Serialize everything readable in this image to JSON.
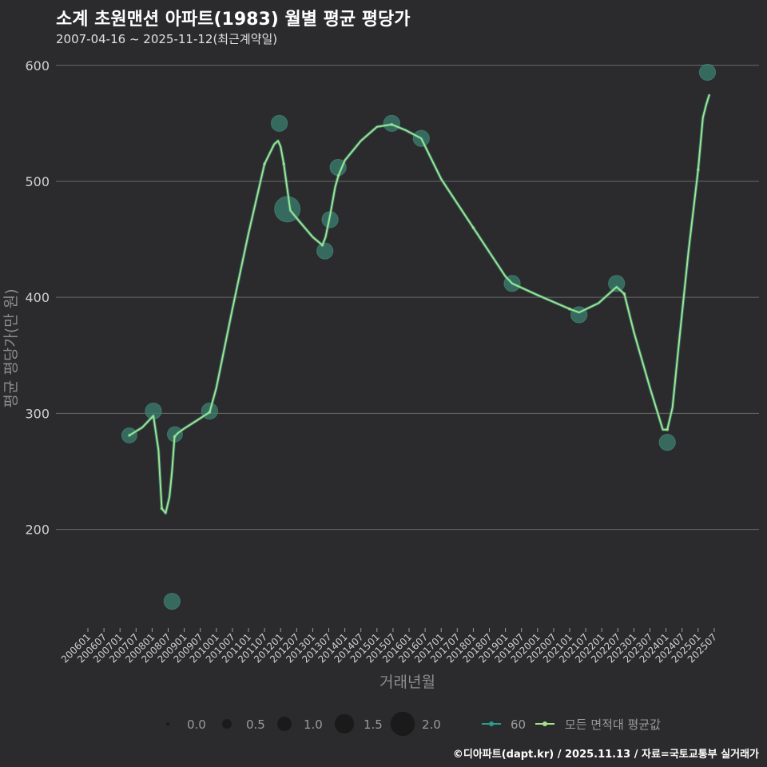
{
  "header": {
    "title": "소계 초원맨션 아파트(1983) 월별 평균 평당가",
    "subtitle": "2007-04-16 ~ 2025-11-12(최근계약일)"
  },
  "caption": "©디아파트(dapt.kr) / 2025.11.13 / 자료=국토교통부 실거래가",
  "colors": {
    "background": "#2b2b2d",
    "grid": "#6a6a6a",
    "series60": "#2a9d8f",
    "avgLine": "#a6e08a",
    "bubble": "#3a7a6a"
  },
  "chart_data": {
    "type": "line",
    "title": "소계 초원맨션 아파트(1983) 월별 평균 평당가",
    "xlabel": "거래년월",
    "ylabel": "평균 평당가(만 원)",
    "ylim": [
      115,
      615
    ],
    "yticks": [
      200,
      300,
      400,
      500,
      600
    ],
    "xtick_labels": [
      "200601",
      "200607",
      "200701",
      "200707",
      "200801",
      "200807",
      "200901",
      "200907",
      "201001",
      "201007",
      "201101",
      "201107",
      "201201",
      "201207",
      "201301",
      "201307",
      "201401",
      "201407",
      "201501",
      "201507",
      "201601",
      "201607",
      "201701",
      "201707",
      "201801",
      "201807",
      "201901",
      "201907",
      "202001",
      "202007",
      "202101",
      "202107",
      "202201",
      "202207",
      "202301",
      "202307",
      "202401",
      "202407",
      "202501",
      "202507"
    ],
    "series": [
      {
        "name": "60",
        "type": "bubble",
        "points": [
          {
            "x": 2007.29,
            "y": 281,
            "size": 1.0
          },
          {
            "x": 2008.04,
            "y": 302,
            "size": 1.1
          },
          {
            "x": 2008.62,
            "y": 138,
            "size": 1.1
          },
          {
            "x": 2008.71,
            "y": 282,
            "size": 1.0
          },
          {
            "x": 2009.79,
            "y": 302,
            "size": 1.1
          },
          {
            "x": 2011.96,
            "y": 550,
            "size": 1.1
          },
          {
            "x": 2012.21,
            "y": 476,
            "size": 2.0
          },
          {
            "x": 2013.38,
            "y": 440,
            "size": 1.1
          },
          {
            "x": 2013.54,
            "y": 467,
            "size": 1.1
          },
          {
            "x": 2013.79,
            "y": 512,
            "size": 1.1
          },
          {
            "x": 2015.46,
            "y": 550,
            "size": 1.1
          },
          {
            "x": 2016.38,
            "y": 537,
            "size": 1.1
          },
          {
            "x": 2019.21,
            "y": 412,
            "size": 1.1
          },
          {
            "x": 2021.29,
            "y": 385,
            "size": 1.1
          },
          {
            "x": 2022.46,
            "y": 412,
            "size": 1.1
          },
          {
            "x": 2024.04,
            "y": 275,
            "size": 1.1
          },
          {
            "x": 2025.29,
            "y": 594,
            "size": 1.1
          }
        ]
      },
      {
        "name": "모든 면적대 평균값",
        "type": "line",
        "x": [
          2007.29,
          2007.7,
          2008.04,
          2008.2,
          2008.3,
          2008.42,
          2008.54,
          2008.62,
          2008.7,
          2008.8,
          2009.0,
          2009.4,
          2009.79,
          2010.0,
          2010.5,
          2011.0,
          2011.5,
          2011.8,
          2011.92,
          2012.0,
          2012.1,
          2012.3,
          2012.6,
          2013.0,
          2013.3,
          2013.4,
          2013.55,
          2013.7,
          2013.8,
          2014.0,
          2014.5,
          2015.0,
          2015.46,
          2015.9,
          2016.38,
          2017.0,
          2018.0,
          2019.0,
          2019.21,
          2020.0,
          2021.0,
          2021.29,
          2021.9,
          2022.46,
          2022.7,
          2023.0,
          2023.5,
          2023.9,
          2024.04,
          2024.2,
          2024.4,
          2024.7,
          2025.0,
          2025.15,
          2025.25,
          2025.35
        ],
        "y": [
          281,
          288,
          298,
          268,
          218,
          214,
          228,
          250,
          280,
          283,
          287,
          294,
          301,
          322,
          390,
          455,
          515,
          532,
          535,
          530,
          515,
          475,
          465,
          452,
          445,
          452,
          472,
          495,
          505,
          518,
          535,
          547,
          549,
          544,
          537,
          502,
          460,
          418,
          412,
          402,
          390,
          387,
          395,
          409,
          403,
          370,
          322,
          286,
          286,
          305,
          360,
          440,
          510,
          555,
          566,
          575
        ]
      }
    ],
    "legend": {
      "size_label_values": [
        "0.0",
        "0.5",
        "1.0",
        "1.5",
        "2.0"
      ],
      "size_values": [
        0.0,
        0.5,
        1.0,
        1.5,
        2.0
      ],
      "series_labels": [
        "60",
        "모든 면적대 평균값"
      ],
      "position": "bottom"
    }
  }
}
